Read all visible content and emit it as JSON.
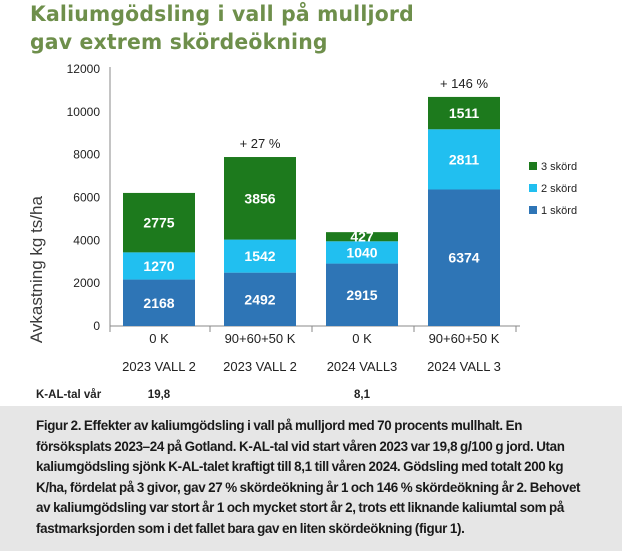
{
  "title": {
    "line1": "Kaliumgödsling i vall på mulljord",
    "line2": "gav extrem skördeökning"
  },
  "chart_data": {
    "type": "bar",
    "stacked": true,
    "ylabel": "Avkastning kg ts/ha",
    "ylim": [
      0,
      12000
    ],
    "yticks": [
      0,
      2000,
      4000,
      6000,
      8000,
      10000,
      12000
    ],
    "grid": false,
    "legend_position": "right",
    "categories": [
      "0 K",
      "90+60+50 K",
      "0 K",
      "90+60+50 K"
    ],
    "group_labels": [
      "2023 VALL 2",
      "2023 VALL 2",
      "2024 VALL3",
      "2024 VALL 3"
    ],
    "series": [
      {
        "name": "1 skörd",
        "color": "#2e75b6",
        "values": [
          2168,
          2492,
          2915,
          6374
        ]
      },
      {
        "name": "2 skörd",
        "color": "#21bff0",
        "values": [
          1270,
          1542,
          1040,
          2811
        ]
      },
      {
        "name": "3 skörd",
        "color": "#1d7a1d",
        "values": [
          2775,
          3856,
          427,
          1511
        ]
      }
    ],
    "annotations": [
      "",
      "+ 27 %",
      "",
      "+ 146 %"
    ],
    "kal_label": "K-AL-tal vår",
    "kal_values": [
      "19,8",
      "",
      "8,1",
      ""
    ]
  },
  "caption": "Figur 2. Effekter av kaliumgödsling i vall på mulljord med 70 procents mullhalt. En försöksplats 2023–24 på Gotland. K-AL-tal vid start våren 2023 var 19,8 g/100 g jord. Utan kaliumgödsling sjönk K-AL-talet kraftigt till 8,1 till våren 2024. Gödsling med totalt 200 kg K/ha, fördelat på 3 givor, gav 27 % skördeökning år 1 och 146 % skördeökning år 2. Behovet av kaliumgödsling var stort år 1 och mycket stort år 2, trots ett liknande kaliumtal som på fastmarksjorden som i det fallet bara gav en liten skördeökning (figur 1)."
}
